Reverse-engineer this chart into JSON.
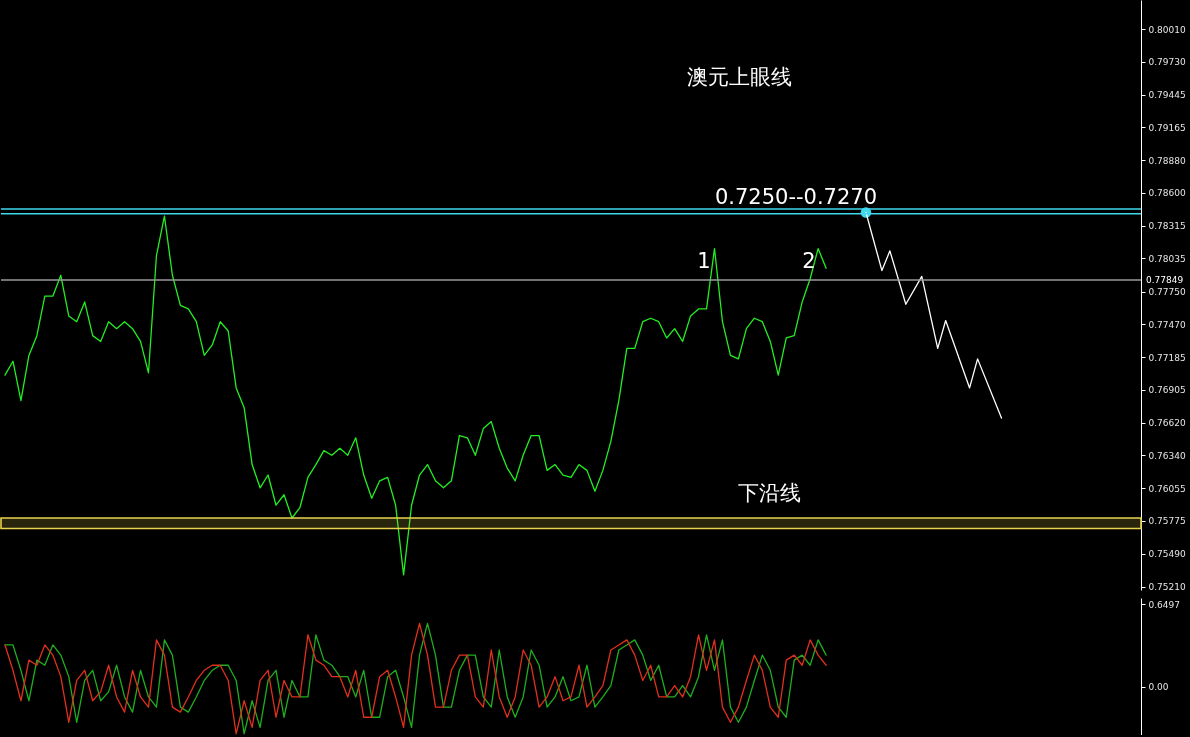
{
  "chart_data": [
    {
      "type": "line",
      "title": "澳元上眼线",
      "categories": [
        null,
        null,
        null,
        null,
        null,
        null,
        null,
        null,
        null,
        null,
        null,
        null,
        null,
        null,
        null,
        null,
        null,
        null,
        null,
        null,
        null,
        null,
        null,
        null,
        null,
        null,
        null,
        null,
        null,
        null,
        null,
        null,
        null,
        null,
        null,
        null,
        null,
        null,
        null,
        null,
        null,
        null,
        null,
        null,
        null,
        null,
        null,
        null,
        null,
        null,
        null,
        null,
        null,
        null,
        null,
        null,
        null,
        null,
        null,
        null,
        null,
        null,
        null,
        null,
        null,
        null,
        null,
        null,
        null,
        null,
        null,
        null,
        null,
        null,
        null,
        null,
        null,
        null,
        null,
        null,
        null,
        null,
        null,
        null,
        null,
        null,
        null,
        null,
        null,
        null,
        null,
        null,
        null,
        null,
        null,
        null,
        null,
        null,
        null,
        null,
        null,
        null,
        null,
        null,
        null,
        null,
        null,
        null,
        null,
        null,
        null,
        null,
        null,
        null,
        null,
        null,
        null,
        null,
        null,
        null,
        null,
        null,
        null,
        null,
        null,
        null,
        null,
        null,
        null,
        null,
        null,
        null,
        null,
        null,
        null,
        null,
        null,
        null,
        null,
        null,
        null,
        null,
        null
      ],
      "series": [
        {
          "color": "#22ee22",
          "values": [
            0.7703,
            0.7715,
            0.7681,
            0.772,
            0.7737,
            0.7771,
            0.7771,
            0.7789,
            0.7754,
            0.7749,
            0.7766,
            0.7737,
            0.7732,
            0.7749,
            0.7743,
            0.7749,
            0.7743,
            0.7732,
            0.7705,
            0.7806,
            0.784,
            0.7789,
            0.7763,
            0.776,
            0.7749,
            0.772,
            0.7729,
            0.7749,
            0.7741,
            0.7692,
            0.7675,
            0.7626,
            0.7606,
            0.7617,
            0.7591,
            0.76,
            0.758,
            0.7589,
            0.7615,
            0.7626,
            0.7638,
            0.7634,
            0.764,
            0.7634,
            0.7649,
            0.7617,
            0.7597,
            0.7612,
            0.7615,
            0.7591,
            0.7531,
            0.7591,
            0.7617,
            0.7626,
            0.7612,
            0.7606,
            0.7612,
            0.7651,
            0.7649,
            0.7634,
            0.7657,
            0.7663,
            0.764,
            0.7623,
            0.7612,
            0.7634,
            0.7651,
            0.7651,
            0.7621,
            0.7626,
            0.7617,
            0.7615,
            0.7626,
            0.7621,
            0.7603,
            0.7621,
            0.7646,
            0.7681,
            0.7726,
            0.7726,
            0.7749,
            0.7752,
            0.7749,
            0.7735,
            0.7743,
            0.7732,
            0.7754,
            0.776,
            0.776,
            0.7812,
            0.7749,
            0.772,
            0.7717,
            0.7743,
            0.7752,
            0.7749,
            0.7732,
            0.7703,
            0.7735,
            0.7737,
            0.7766,
            0.7786,
            0.7812,
            0.7795,
            null,
            null,
            null,
            null,
            null,
            null,
            null,
            null,
            null,
            null,
            null,
            null,
            null,
            null,
            null,
            null,
            null,
            null,
            null,
            null,
            null,
            null,
            null,
            null,
            null,
            null,
            null,
            null,
            null,
            null,
            null,
            null,
            null,
            null,
            null,
            null,
            null,
            null,
            null
          ]
        },
        {
          "color": "#ffffff",
          "values": [
            null,
            null,
            null,
            null,
            null,
            null,
            null,
            null,
            null,
            null,
            null,
            null,
            null,
            null,
            null,
            null,
            null,
            null,
            null,
            null,
            null,
            null,
            null,
            null,
            null,
            null,
            null,
            null,
            null,
            null,
            null,
            null,
            null,
            null,
            null,
            null,
            null,
            null,
            null,
            null,
            null,
            null,
            null,
            null,
            null,
            null,
            null,
            null,
            null,
            null,
            null,
            null,
            null,
            null,
            null,
            null,
            null,
            null,
            null,
            null,
            null,
            null,
            null,
            null,
            null,
            null,
            null,
            null,
            null,
            null,
            null,
            null,
            null,
            null,
            null,
            null,
            null,
            null,
            null,
            null,
            null,
            null,
            null,
            null,
            null,
            null,
            null,
            null,
            null,
            null,
            null,
            null,
            null,
            null,
            null,
            null,
            null,
            null,
            null,
            null,
            null,
            null,
            null,
            null,
            null,
            null,
            null,
            null,
            0.7843,
            null,
            0.7793,
            0.781,
            null,
            0.7764,
            null,
            0.7788,
            null,
            0.7726,
            0.775,
            null,
            null,
            0.7692,
            0.7717,
            null,
            null,
            0.7666,
            null,
            null,
            null,
            null,
            null,
            null,
            null,
            null,
            null,
            null,
            null,
            null,
            null,
            null,
            null,
            null,
            null
          ]
        },
        {
          "type": "scatter",
          "color": "#3fd8ee",
          "values": [
            null,
            null,
            null,
            null,
            null,
            null,
            null,
            null,
            null,
            null,
            null,
            null,
            null,
            null,
            null,
            null,
            null,
            null,
            null,
            null,
            null,
            null,
            null,
            null,
            null,
            null,
            null,
            null,
            null,
            null,
            null,
            null,
            null,
            null,
            null,
            null,
            null,
            null,
            null,
            null,
            null,
            null,
            null,
            null,
            null,
            null,
            null,
            null,
            null,
            null,
            null,
            null,
            null,
            null,
            null,
            null,
            null,
            null,
            null,
            null,
            null,
            null,
            null,
            null,
            null,
            null,
            null,
            null,
            null,
            null,
            null,
            null,
            null,
            null,
            null,
            null,
            null,
            null,
            null,
            null,
            null,
            null,
            null,
            null,
            null,
            null,
            null,
            null,
            null,
            null,
            null,
            null,
            null,
            null,
            null,
            null,
            null,
            null,
            null,
            null,
            null,
            null,
            null,
            null,
            null,
            null,
            null,
            null,
            0.7843,
            null,
            null,
            null,
            null,
            null,
            null,
            null,
            null,
            null,
            null,
            null,
            null,
            null,
            null,
            null,
            null,
            null,
            null,
            null,
            null,
            null,
            null,
            null,
            null,
            null,
            null,
            null,
            null,
            null,
            null,
            null,
            null,
            null,
            null
          ]
        }
      ],
      "ylim": [
        0.7518,
        0.8026
      ],
      "yticks": [
        {
          "value": 0.8001,
          "label": "0.80010"
        },
        {
          "value": 0.7973,
          "label": "0.79730"
        },
        {
          "value": 0.79445,
          "label": "0.79445"
        },
        {
          "value": 0.79165,
          "label": "0.79165"
        },
        {
          "value": 0.7888,
          "label": "0.78880"
        },
        {
          "value": 0.786,
          "label": "0.78600"
        },
        {
          "value": 0.78315,
          "label": "0.78315"
        },
        {
          "value": 0.78035,
          "label": "0.78035"
        },
        {
          "value": 0.7775,
          "label": "0.77750"
        },
        {
          "value": 0.7747,
          "label": "0.77470"
        },
        {
          "value": 0.77185,
          "label": "0.77185"
        },
        {
          "value": 0.76905,
          "label": "0.76905"
        },
        {
          "value": 0.7662,
          "label": "0.76620"
        },
        {
          "value": 0.7634,
          "label": "0.76340"
        },
        {
          "value": 0.76055,
          "label": "0.76055"
        },
        {
          "value": 0.75775,
          "label": "0.75775"
        },
        {
          "value": 0.7549,
          "label": "0.75490"
        },
        {
          "value": 0.7521,
          "label": "0.75210"
        }
      ],
      "tick_labels": "y",
      "ref_lines": [
        {
          "axis": "y",
          "value": 0.7846,
          "color": "#3fd8ee"
        },
        {
          "axis": "y",
          "value": 0.7842,
          "color": "#3fd8ee"
        },
        {
          "axis": "y",
          "value": 0.77849,
          "color": "#9a9a9a",
          "label": "0.77849"
        }
      ],
      "bands": [
        {
          "axis": "y",
          "from": 0.7571,
          "to": 0.758,
          "color": "#e8d44d",
          "label": "下沿线"
        }
      ],
      "annotations": [
        "1",
        "2",
        "0.7250--0.7270"
      ]
    },
    {
      "type": "line",
      "categories": [
        null,
        null,
        null,
        null,
        null,
        null,
        null,
        null,
        null,
        null,
        null,
        null,
        null,
        null,
        null,
        null,
        null,
        null,
        null,
        null,
        null,
        null,
        null,
        null,
        null,
        null,
        null,
        null,
        null,
        null,
        null,
        null,
        null,
        null,
        null,
        null,
        null,
        null,
        null,
        null,
        null,
        null,
        null,
        null,
        null,
        null,
        null,
        null,
        null,
        null,
        null,
        null,
        null,
        null,
        null,
        null,
        null,
        null,
        null,
        null,
        null,
        null,
        null,
        null,
        null,
        null,
        null,
        null,
        null,
        null,
        null,
        null,
        null,
        null,
        null,
        null,
        null,
        null,
        null,
        null,
        null,
        null,
        null,
        null,
        null,
        null,
        null,
        null,
        null,
        null,
        null,
        null,
        null,
        null,
        null,
        null,
        null,
        null,
        null,
        null,
        null,
        null,
        null,
        null,
        null,
        null,
        null,
        null,
        null,
        null,
        null,
        null,
        null,
        null,
        null,
        null,
        null,
        null,
        null,
        null,
        null,
        null,
        null,
        null,
        null,
        null,
        null,
        null,
        null,
        null,
        null,
        null,
        null,
        null,
        null,
        null,
        null,
        null,
        null,
        null,
        null,
        null,
        null
      ],
      "series": [
        {
          "color": "#1fae1f",
          "values": [
            0.33,
            0.33,
            0.13,
            -0.11,
            0.21,
            0.17,
            0.33,
            0.25,
            0.08,
            -0.28,
            0.05,
            0.13,
            -0.11,
            -0.04,
            0.17,
            -0.08,
            -0.2,
            0.13,
            -0.08,
            -0.16,
            0.37,
            0.25,
            -0.16,
            -0.2,
            -0.08,
            0.05,
            0.13,
            0.17,
            0.17,
            0.05,
            -0.37,
            -0.11,
            -0.32,
            0.05,
            0.13,
            -0.24,
            0.05,
            -0.08,
            -0.08,
            0.41,
            0.21,
            0.17,
            0.08,
            0.08,
            -0.08,
            0.13,
            -0.24,
            -0.24,
            0.08,
            0.13,
            -0.08,
            -0.32,
            0.25,
            0.5,
            0.25,
            -0.16,
            -0.16,
            0.13,
            0.25,
            0.25,
            -0.08,
            -0.16,
            0.29,
            -0.08,
            -0.24,
            -0.08,
            0.29,
            0.17,
            -0.16,
            -0.08,
            0.08,
            -0.11,
            -0.08,
            0.17,
            -0.16,
            -0.08,
            0.01,
            0.29,
            0.33,
            0.37,
            0.25,
            0.05,
            0.17,
            -0.08,
            -0.08,
            0.01,
            -0.08,
            0.08,
            0.41,
            0.13,
            0.37,
            -0.16,
            -0.28,
            -0.16,
            0.05,
            0.25,
            0.13,
            -0.16,
            -0.24,
            0.21,
            0.25,
            0.17,
            0.37,
            0.25,
            null,
            null,
            null,
            null,
            null,
            null,
            null,
            null,
            null,
            null,
            null,
            null,
            null,
            null,
            null,
            null,
            null,
            null,
            null,
            null,
            null,
            null,
            null,
            null,
            null,
            null,
            null,
            null,
            null,
            null,
            null,
            null,
            null,
            null,
            null,
            null,
            null,
            null,
            null
          ]
        },
        {
          "color": "#e0301e",
          "values": [
            0.33,
            0.13,
            -0.11,
            0.21,
            0.17,
            0.33,
            0.25,
            0.08,
            -0.28,
            0.05,
            0.13,
            -0.11,
            -0.04,
            0.17,
            -0.08,
            -0.2,
            0.13,
            -0.08,
            -0.16,
            0.37,
            0.25,
            -0.16,
            -0.2,
            -0.08,
            0.05,
            0.13,
            0.17,
            0.17,
            0.05,
            -0.37,
            -0.11,
            -0.32,
            0.05,
            0.13,
            -0.24,
            0.05,
            -0.08,
            -0.08,
            0.41,
            0.21,
            0.17,
            0.08,
            0.08,
            -0.08,
            0.13,
            -0.24,
            -0.24,
            0.08,
            0.13,
            -0.08,
            -0.32,
            0.25,
            0.5,
            0.25,
            -0.16,
            -0.16,
            0.13,
            0.25,
            0.25,
            -0.08,
            -0.16,
            0.29,
            -0.08,
            -0.24,
            -0.08,
            0.29,
            0.17,
            -0.16,
            -0.08,
            0.08,
            -0.11,
            -0.08,
            0.17,
            -0.16,
            -0.08,
            0.01,
            0.29,
            0.33,
            0.37,
            0.25,
            0.05,
            0.17,
            -0.08,
            -0.08,
            0.01,
            -0.08,
            0.08,
            0.41,
            0.13,
            0.37,
            -0.16,
            -0.28,
            -0.16,
            0.05,
            0.25,
            0.13,
            -0.16,
            -0.24,
            0.21,
            0.25,
            0.17,
            0.37,
            0.25,
            0.17,
            null,
            null,
            null,
            null,
            null,
            null,
            null,
            null,
            null,
            null,
            null,
            null,
            null,
            null,
            null,
            null,
            null,
            null,
            null,
            null,
            null,
            null,
            null,
            null,
            null,
            null,
            null,
            null,
            null,
            null,
            null,
            null,
            null,
            null,
            null,
            null,
            null,
            null,
            null
          ]
        }
      ],
      "ylim": [
        -0.38,
        0.7
      ],
      "yticks": [
        0.6497,
        {
          "value": 0,
          "label": "0.00"
        }
      ],
      "tick_labels": "y"
    }
  ]
}
